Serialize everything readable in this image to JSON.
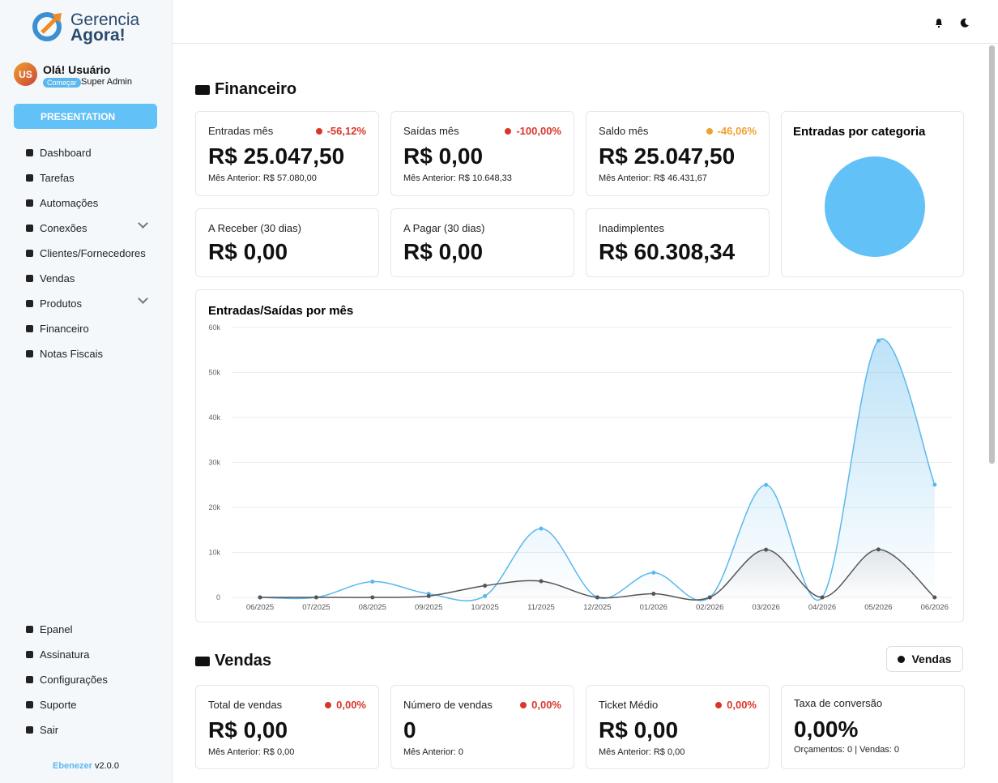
{
  "sidebar": {
    "logo": {
      "line1": "Gerencia",
      "line2": "Agora!"
    },
    "user": {
      "avatar": "US",
      "greeting": "Olá! Usuário",
      "badge": "Começar",
      "role": "Super Admin"
    },
    "button": "PRESENTATION",
    "menu": [
      "Dashboard",
      "Tarefas",
      "Automações",
      "Conexões",
      "Clientes/Fornecedores",
      "Vendas",
      "Produtos",
      "Financeiro",
      "Notas Fiscais"
    ],
    "bottom_menu": [
      "Epanel",
      "Assinatura",
      "Configurações",
      "Suporte",
      "Sair"
    ],
    "footer": {
      "author": "Ebenezer",
      "version": "v2.0.0"
    }
  },
  "financeiro": {
    "title": "Financeiro",
    "cards": [
      {
        "label": "Entradas mês",
        "change": "-56,12%",
        "change_color": "#d9362b",
        "value": "R$ 25.047,50",
        "previous": "Mês Anterior: R$ 57.080,00"
      },
      {
        "label": "Saídas mês",
        "change": "-100,00%",
        "change_color": "#d9362b",
        "value": "R$ 0,00",
        "previous": "Mês Anterior: R$ 10.648,33"
      },
      {
        "label": "Saldo mês",
        "change": "-46,06%",
        "change_color": "#f0a030",
        "value": "R$ 25.047,50",
        "previous": "Mês Anterior: R$ 46.431,67"
      },
      {
        "label": "A Receber (30 dias)",
        "value": "R$ 0,00"
      },
      {
        "label": "A Pagar (30 dias)",
        "value": "R$ 0,00"
      },
      {
        "label": "Inadimplentes",
        "value": "R$ 60.308,34"
      }
    ]
  },
  "vendas": {
    "title": "Vendas",
    "button": "Vendas",
    "cards": [
      {
        "label": "Total de vendas",
        "change": "0,00%",
        "change_color": "#d9362b",
        "value": "R$ 0,00",
        "previous": "Mês Anterior: R$ 0,00"
      },
      {
        "label": "Número de vendas",
        "change": "0,00%",
        "change_color": "#d9362b",
        "value": "0",
        "previous": "Mês Anterior: 0"
      },
      {
        "label": "Ticket Médio",
        "change": "0,00%",
        "change_color": "#d9362b",
        "value": "R$ 0,00",
        "previous": "Mês Anterior: R$ 0,00"
      },
      {
        "label": "Taxa de conversão",
        "value": "0,00%",
        "previous": "Orçamentos: 0 | Vendas: 0"
      }
    ]
  },
  "chart_data": [
    {
      "type": "line",
      "title": "Entradas/Saídas por mês",
      "categories": [
        "06/2025",
        "07/2025",
        "08/2025",
        "09/2025",
        "10/2025",
        "11/2025",
        "12/2025",
        "01/2026",
        "02/2026",
        "03/2026",
        "04/2026",
        "05/2026",
        "06/2026"
      ],
      "series": [
        {
          "color": "#5cb8ec",
          "values": [
            0,
            0,
            3500,
            800,
            300,
            15300,
            0,
            5500,
            0,
            25000,
            0,
            57080,
            25047.5
          ]
        },
        {
          "color": "#555555",
          "values": [
            0,
            0,
            0,
            300,
            2600,
            3600,
            0,
            800,
            0,
            10600,
            0,
            10648.33,
            0
          ]
        }
      ],
      "ylim": [
        0,
        60000
      ],
      "yticks": [
        0,
        {
          "value": 10000,
          "label": "10k"
        },
        {
          "value": 20000,
          "label": "20k"
        },
        {
          "value": 30000,
          "label": "30k"
        },
        {
          "value": 40000,
          "label": "40k"
        },
        {
          "value": 50000,
          "label": "50k"
        },
        {
          "value": 60000,
          "label": "60k"
        }
      ],
      "grid": true
    },
    {
      "type": "pie",
      "title": "Entradas por categoria",
      "values": [
        25047.5
      ],
      "colors": [
        "#62c1f6"
      ]
    }
  ]
}
